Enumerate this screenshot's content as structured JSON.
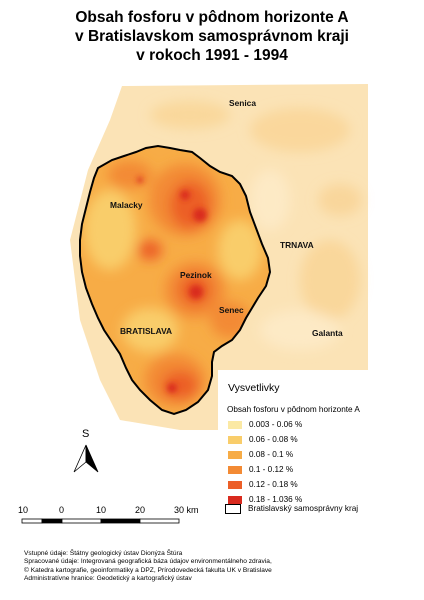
{
  "title": {
    "line1": "Obsah fosforu v pôdnom horizonte A",
    "line2": "v Bratislavskom samosprávnom kraji",
    "line3": "v rokoch 1991 - 1994"
  },
  "places": {
    "senica": "Senica",
    "malacky": "Malacky",
    "trnava": "TRNAVA",
    "pezinok": "Pezinok",
    "senec": "Senec",
    "bratislava": "BRATISLAVA",
    "galanta": "Galanta"
  },
  "north_arrow": {
    "label": "S"
  },
  "legend": {
    "heading": "Vysvetlivky",
    "subtitle": "Obsah fosforu v pôdnom horizonte A",
    "classes": [
      {
        "label": "0.003 - 0.06 %",
        "color": "#fbe9a4"
      },
      {
        "label": "0.06 - 0.08 %",
        "color": "#f9cd6a"
      },
      {
        "label": "0.08 - 0.1 %",
        "color": "#f7ac46"
      },
      {
        "label": "0.1 - 0.12 %",
        "color": "#f38a34"
      },
      {
        "label": "0.12 - 0.18 %",
        "color": "#ec5f28"
      },
      {
        "label": "0.18 - 1.036 %",
        "color": "#d92a1e"
      }
    ],
    "boundary_label": "Bratislavský samosprávny kraj"
  },
  "scale_bar": {
    "ticks": [
      "10",
      "0",
      "10",
      "20",
      "30 km"
    ]
  },
  "credits": [
    "Vstupné údaje: Štátny geologický ústav Dionýza Štúra",
    "Spracované údaje: Integrovaná geografická báza údajov environmentálneho zdravia,",
    "© Katedra kartografie, geoinformatiky a DPZ, Prírodovedecká fakulta UK v Bratislave",
    "Administratívne hranice: Geodetický a kartografický ústav"
  ],
  "colors": {
    "outside_base": "#fbe3b6",
    "inside_base": "#f7ac46",
    "boundary": "#000000"
  }
}
